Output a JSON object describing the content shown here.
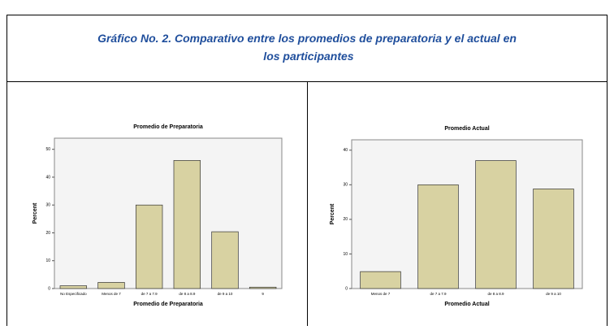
{
  "caption": "Gráfico No. 2. Comparativo entre los promedios de preparatoria y el actual en los participantes",
  "chart_data": [
    {
      "type": "bar",
      "title": "Promedio de Preparatoria",
      "x_label": "Promedio de Preparatoria",
      "y_label": "Percent",
      "categories": [
        "No Especificado",
        "Menos de 7",
        "de 7 a 7.9",
        "de 8 a 8.9",
        "de 9 a 10",
        "9"
      ],
      "values": [
        1,
        2.2,
        30,
        46,
        20.4,
        0.5
      ],
      "color": "#d8d2a2",
      "ylim": [
        0,
        54
      ],
      "yticks": [
        0,
        10,
        20,
        30,
        40,
        50
      ]
    },
    {
      "type": "bar",
      "title": "Promedio Actual",
      "x_label": "Promedio Actual",
      "y_label": "Percent",
      "categories": [
        "Menos de 7",
        "de 7 a 7.9",
        "de 8 a 8.9",
        "de 9 a 10"
      ],
      "values": [
        4.9,
        30,
        37,
        28.8
      ],
      "color": "#d8d2a2",
      "ylim": [
        0,
        43
      ],
      "yticks": [
        0,
        10,
        20,
        30,
        40
      ]
    }
  ]
}
